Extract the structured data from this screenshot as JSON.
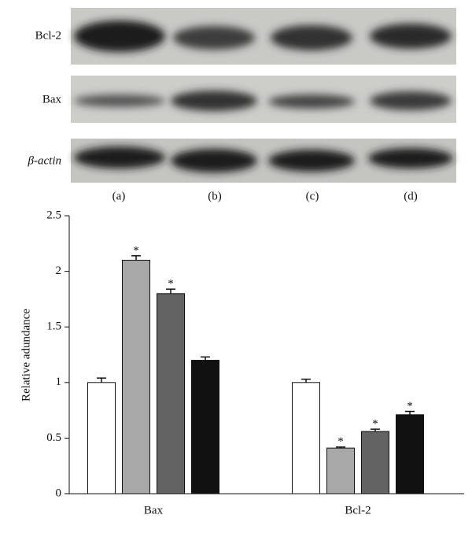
{
  "blot": {
    "rows": [
      "Bcl-2",
      "Bax",
      "β-actin"
    ],
    "lanes": [
      "(a)",
      "(b)",
      "(c)",
      "(d)"
    ]
  },
  "chart_data": {
    "type": "bar",
    "y_label": "Relative adundance",
    "categories": [
      "Bax",
      "Bcl-2"
    ],
    "series": [
      {
        "color": "#ffffff",
        "values": [
          1.0,
          1.0
        ],
        "errors": [
          0.04,
          0.03
        ],
        "annotations": [
          null,
          null
        ]
      },
      {
        "color": "#a8a8a8",
        "values": [
          2.1,
          0.41
        ],
        "errors": [
          0.04,
          0.01
        ],
        "annotations": [
          "*",
          "*"
        ]
      },
      {
        "color": "#636363",
        "values": [
          1.8,
          0.56
        ],
        "errors": [
          0.04,
          0.02
        ],
        "annotations": [
          "*",
          "*"
        ]
      },
      {
        "color": "#111111",
        "values": [
          1.2,
          0.71
        ],
        "errors": [
          0.03,
          0.03
        ],
        "annotations": [
          null,
          "*"
        ]
      }
    ],
    "ylim": [
      0,
      2.5
    ],
    "yticks": [
      0,
      0.5,
      1,
      1.5,
      2,
      2.5
    ]
  }
}
